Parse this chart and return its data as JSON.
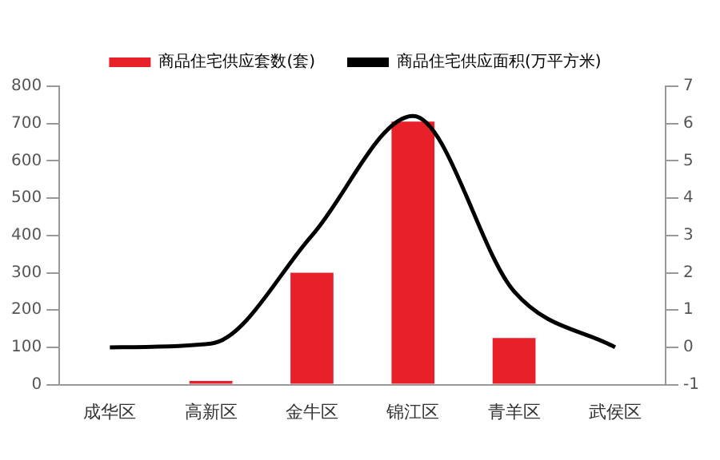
{
  "chart_data": {
    "type": "bar",
    "categories": [
      "成华区",
      "高新区",
      "金牛区",
      "锦江区",
      "青羊区",
      "武侯区"
    ],
    "series": [
      {
        "name": "商品住宅供应套数(套)",
        "color": "#e8202a",
        "values": [
          0,
          10,
          300,
          705,
          125,
          0
        ]
      },
      {
        "name": "商品住宅供应面积(万平方米)",
        "type": "line",
        "axis": "y2",
        "color": "#000000",
        "values": [
          0,
          0.1,
          3.0,
          6.2,
          1.5,
          0
        ]
      }
    ],
    "ylim": [
      0,
      800
    ],
    "yticks": [
      0,
      100,
      200,
      300,
      400,
      500,
      600,
      700,
      800
    ],
    "y2lim": [
      -1,
      7
    ],
    "y2ticks": [
      -1,
      0,
      1,
      2,
      3,
      4,
      5,
      6,
      7
    ],
    "grid": false,
    "legend": "top",
    "marker": "none"
  }
}
